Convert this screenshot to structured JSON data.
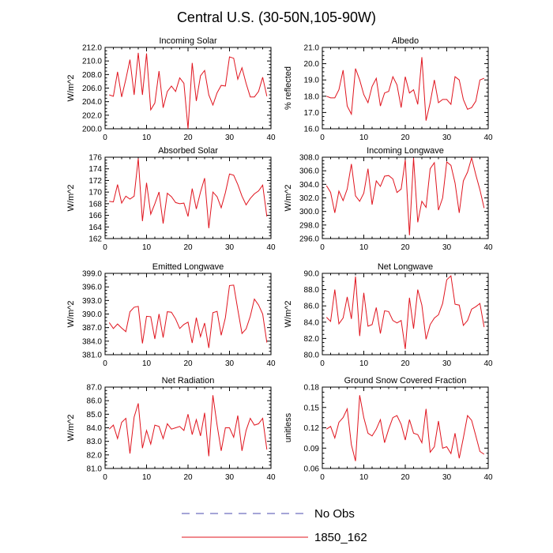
{
  "figure": {
    "title": "Central U.S. (30-50N,105-90W)",
    "legend": [
      {
        "label": "No Obs",
        "color": "#4b4baf",
        "style": "dashed"
      },
      {
        "label": "1850_162",
        "color": "#e0141e",
        "style": "solid"
      }
    ]
  },
  "chart_data": [
    {
      "type": "line",
      "title": "Incoming Solar",
      "ylabel": "W/m^2",
      "xlim": [
        0,
        40
      ],
      "xticks": [
        "0",
        "10",
        "20",
        "30",
        "40"
      ],
      "ylim": [
        200,
        212
      ],
      "yticks": [
        "200.0",
        "202.0",
        "204.0",
        "206.0",
        "208.0",
        "210.0",
        "212.0"
      ],
      "series": [
        {
          "name": "1850_162",
          "x": [
            1,
            2,
            3,
            4,
            5,
            6,
            7,
            8,
            9,
            10,
            11,
            12,
            13,
            14,
            15,
            16,
            17,
            18,
            19,
            20,
            21,
            22,
            23,
            24,
            25,
            26,
            27,
            28,
            29,
            30,
            31,
            32,
            33,
            34,
            35,
            36,
            37,
            38,
            39
          ],
          "values": [
            205.0,
            204.8,
            208.4,
            204.7,
            207.3,
            210.2,
            205.0,
            211.2,
            205.0,
            211.1,
            202.8,
            203.8,
            208.5,
            203.1,
            205.5,
            206.3,
            205.5,
            207.5,
            206.7,
            200.0,
            209.7,
            204.1,
            207.8,
            208.6,
            205.0,
            203.5,
            205.3,
            206.4,
            206.3,
            210.6,
            210.4,
            207.3,
            209.0,
            206.7,
            204.7,
            204.7,
            205.5,
            207.6,
            204.8
          ]
        }
      ]
    },
    {
      "type": "line",
      "title": "Albedo",
      "ylabel": "% reflected",
      "xlim": [
        0,
        40
      ],
      "xticks": [
        "0",
        "10",
        "20",
        "30",
        "40"
      ],
      "ylim": [
        16,
        21
      ],
      "yticks": [
        "16.0",
        "17.0",
        "18.0",
        "19.0",
        "20.0",
        "21.0"
      ],
      "series": [
        {
          "name": "1850_162",
          "x": [
            1,
            2,
            3,
            4,
            5,
            6,
            7,
            8,
            9,
            10,
            11,
            12,
            13,
            14,
            15,
            16,
            17,
            18,
            19,
            20,
            21,
            22,
            23,
            24,
            25,
            26,
            27,
            28,
            29,
            30,
            31,
            32,
            33,
            34,
            35,
            36,
            37,
            38,
            39
          ],
          "values": [
            18.0,
            17.9,
            17.9,
            18.4,
            19.6,
            17.4,
            16.9,
            19.7,
            19.0,
            18.1,
            17.6,
            18.6,
            19.1,
            17.4,
            18.2,
            18.3,
            19.2,
            18.7,
            17.3,
            19.2,
            18.2,
            18.4,
            17.5,
            20.4,
            16.5,
            17.6,
            19.0,
            17.6,
            17.8,
            17.8,
            17.5,
            19.2,
            19.0,
            17.8,
            17.2,
            17.3,
            17.7,
            19.0,
            19.1
          ]
        }
      ]
    },
    {
      "type": "line",
      "title": "Absorbed Solar",
      "ylabel": "W/m^2",
      "xlim": [
        0,
        40
      ],
      "xticks": [
        "0",
        "10",
        "20",
        "30",
        "40"
      ],
      "ylim": [
        162,
        176
      ],
      "yticks": [
        "162",
        "164",
        "166",
        "168",
        "170",
        "172",
        "174",
        "176"
      ],
      "series": [
        {
          "name": "1850_162",
          "x": [
            1,
            2,
            3,
            4,
            5,
            6,
            7,
            8,
            9,
            10,
            11,
            12,
            13,
            14,
            15,
            16,
            17,
            18,
            19,
            20,
            21,
            22,
            23,
            24,
            25,
            26,
            27,
            28,
            29,
            30,
            31,
            32,
            33,
            34,
            35,
            36,
            37,
            38,
            39
          ],
          "values": [
            168.4,
            168.3,
            171.3,
            168.1,
            169.3,
            168.8,
            169.3,
            175.8,
            165.0,
            171.6,
            166.2,
            168.0,
            170.0,
            164.6,
            169.8,
            169.2,
            168.2,
            168.0,
            168.1,
            165.8,
            170.6,
            167.1,
            170.0,
            172.4,
            163.8,
            170.0,
            169.2,
            167.3,
            169.9,
            173.1,
            172.9,
            171.3,
            169.3,
            167.8,
            168.9,
            169.7,
            170.2,
            171.2,
            165.8
          ]
        }
      ]
    },
    {
      "type": "line",
      "title": "Incoming Longwave",
      "ylabel": "W/m^2",
      "xlim": [
        0,
        40
      ],
      "xticks": [
        "0",
        "10",
        "20",
        "30",
        "40"
      ],
      "ylim": [
        296,
        308
      ],
      "yticks": [
        "296.0",
        "298.0",
        "300.0",
        "302.0",
        "304.0",
        "306.0",
        "308.0"
      ],
      "series": [
        {
          "name": "1850_162",
          "x": [
            1,
            2,
            3,
            4,
            5,
            6,
            7,
            8,
            9,
            10,
            11,
            12,
            13,
            14,
            15,
            16,
            17,
            18,
            19,
            20,
            21,
            22,
            23,
            24,
            25,
            26,
            27,
            28,
            29,
            30,
            31,
            32,
            33,
            34,
            35,
            36,
            37,
            38,
            39
          ],
          "values": [
            303.8,
            302.8,
            299.8,
            303.0,
            301.6,
            303.3,
            307.0,
            302.3,
            301.5,
            302.7,
            306.3,
            301.0,
            304.5,
            303.7,
            305.2,
            305.3,
            304.8,
            302.8,
            303.3,
            307.6,
            296.5,
            307.9,
            298.4,
            301.5,
            300.6,
            306.3,
            307.2,
            300.2,
            302.0,
            307.3,
            306.8,
            304.2,
            299.8,
            304.5,
            305.8,
            307.9,
            305.4,
            303.2,
            300.5
          ]
        }
      ]
    },
    {
      "type": "line",
      "title": "Emitted Longwave",
      "ylabel": "W/m^2",
      "xlim": [
        0,
        40
      ],
      "xticks": [
        "0",
        "10",
        "20",
        "30",
        "40"
      ],
      "ylim": [
        381,
        399
      ],
      "yticks": [
        "381.0",
        "384.0",
        "387.0",
        "390.0",
        "393.0",
        "396.0",
        "399.0"
      ],
      "series": [
        {
          "name": "1850_162",
          "x": [
            1,
            2,
            3,
            4,
            5,
            6,
            7,
            8,
            9,
            10,
            11,
            12,
            13,
            14,
            15,
            16,
            17,
            18,
            19,
            20,
            21,
            22,
            23,
            24,
            25,
            26,
            27,
            28,
            29,
            30,
            31,
            32,
            33,
            34,
            35,
            36,
            37,
            38,
            39
          ],
          "values": [
            388.1,
            386.8,
            387.8,
            386.9,
            386.1,
            390.5,
            391.5,
            391.7,
            383.5,
            389.5,
            389.4,
            384.5,
            390.0,
            384.8,
            390.5,
            390.4,
            388.9,
            386.8,
            387.7,
            388.2,
            383.6,
            389.2,
            385.0,
            388.0,
            382.5,
            390.3,
            390.6,
            385.3,
            389.2,
            396.3,
            396.4,
            391.0,
            385.7,
            386.7,
            389.5,
            393.3,
            392.0,
            390.0,
            383.7
          ]
        }
      ]
    },
    {
      "type": "line",
      "title": "Net Longwave",
      "ylabel": "W/m^2",
      "xlim": [
        0,
        40
      ],
      "xticks": [
        "0",
        "10",
        "20",
        "30",
        "40"
      ],
      "ylim": [
        80,
        90
      ],
      "yticks": [
        "80.0",
        "82.0",
        "84.0",
        "86.0",
        "88.0",
        "90.0"
      ],
      "series": [
        {
          "name": "1850_162",
          "x": [
            1,
            2,
            3,
            4,
            5,
            6,
            7,
            8,
            9,
            10,
            11,
            12,
            13,
            14,
            15,
            16,
            17,
            18,
            19,
            20,
            21,
            22,
            23,
            24,
            25,
            26,
            27,
            28,
            29,
            30,
            31,
            32,
            33,
            34,
            35,
            36,
            37,
            38,
            39
          ],
          "values": [
            84.6,
            84.1,
            88.0,
            83.8,
            84.5,
            87.1,
            84.4,
            89.6,
            82.3,
            87.6,
            83.5,
            83.7,
            85.8,
            82.6,
            85.4,
            85.3,
            84.2,
            83.9,
            84.2,
            80.7,
            87.0,
            83.2,
            88.0,
            86.1,
            81.9,
            83.7,
            84.5,
            84.9,
            86.3,
            89.2,
            89.7,
            86.2,
            86.1,
            83.6,
            84.2,
            85.6,
            85.9,
            86.3,
            83.4
          ]
        }
      ]
    },
    {
      "type": "line",
      "title": "Net Radiation",
      "ylabel": "W/m^2",
      "xlim": [
        0,
        40
      ],
      "xticks": [
        "0",
        "10",
        "20",
        "30",
        "40"
      ],
      "ylim": [
        81,
        87
      ],
      "yticks": [
        "81.0",
        "82.0",
        "83.0",
        "84.0",
        "85.0",
        "86.0",
        "87.0"
      ],
      "series": [
        {
          "name": "1850_162",
          "x": [
            1,
            2,
            3,
            4,
            5,
            6,
            7,
            8,
            9,
            10,
            11,
            12,
            13,
            14,
            15,
            16,
            17,
            18,
            19,
            20,
            21,
            22,
            23,
            24,
            25,
            26,
            27,
            28,
            29,
            30,
            31,
            32,
            33,
            34,
            35,
            36,
            37,
            38,
            39
          ],
          "values": [
            83.9,
            84.2,
            83.2,
            84.4,
            84.7,
            82.1,
            84.8,
            85.8,
            82.5,
            83.8,
            82.8,
            84.2,
            84.1,
            83.2,
            84.3,
            83.9,
            84.0,
            84.1,
            83.8,
            85.0,
            83.5,
            84.6,
            83.4,
            85.1,
            81.9,
            86.4,
            84.2,
            82.3,
            84.0,
            84.0,
            83.3,
            84.9,
            82.3,
            83.8,
            84.7,
            84.2,
            84.3,
            84.7,
            82.4
          ]
        }
      ]
    },
    {
      "type": "line",
      "title": "Ground Snow Covered Fraction",
      "ylabel": "unitless",
      "xlim": [
        0,
        40
      ],
      "xticks": [
        "0",
        "10",
        "20",
        "30",
        "40"
      ],
      "ylim": [
        0.06,
        0.18
      ],
      "yticks": [
        "0.06",
        "0.09",
        "0.12",
        "0.15",
        "0.18"
      ],
      "series": [
        {
          "name": "1850_162",
          "x": [
            1,
            2,
            3,
            4,
            5,
            6,
            7,
            8,
            9,
            10,
            11,
            12,
            13,
            14,
            15,
            16,
            17,
            18,
            19,
            20,
            21,
            22,
            23,
            24,
            25,
            26,
            27,
            28,
            29,
            30,
            31,
            32,
            33,
            34,
            35,
            36,
            37,
            38,
            39
          ],
          "values": [
            0.118,
            0.122,
            0.105,
            0.128,
            0.135,
            0.148,
            0.095,
            0.071,
            0.168,
            0.135,
            0.112,
            0.108,
            0.118,
            0.132,
            0.098,
            0.118,
            0.135,
            0.138,
            0.125,
            0.102,
            0.132,
            0.112,
            0.11,
            0.098,
            0.148,
            0.084,
            0.092,
            0.13,
            0.09,
            0.092,
            0.082,
            0.112,
            0.075,
            0.105,
            0.138,
            0.131,
            0.108,
            0.085,
            0.081
          ]
        }
      ]
    }
  ]
}
